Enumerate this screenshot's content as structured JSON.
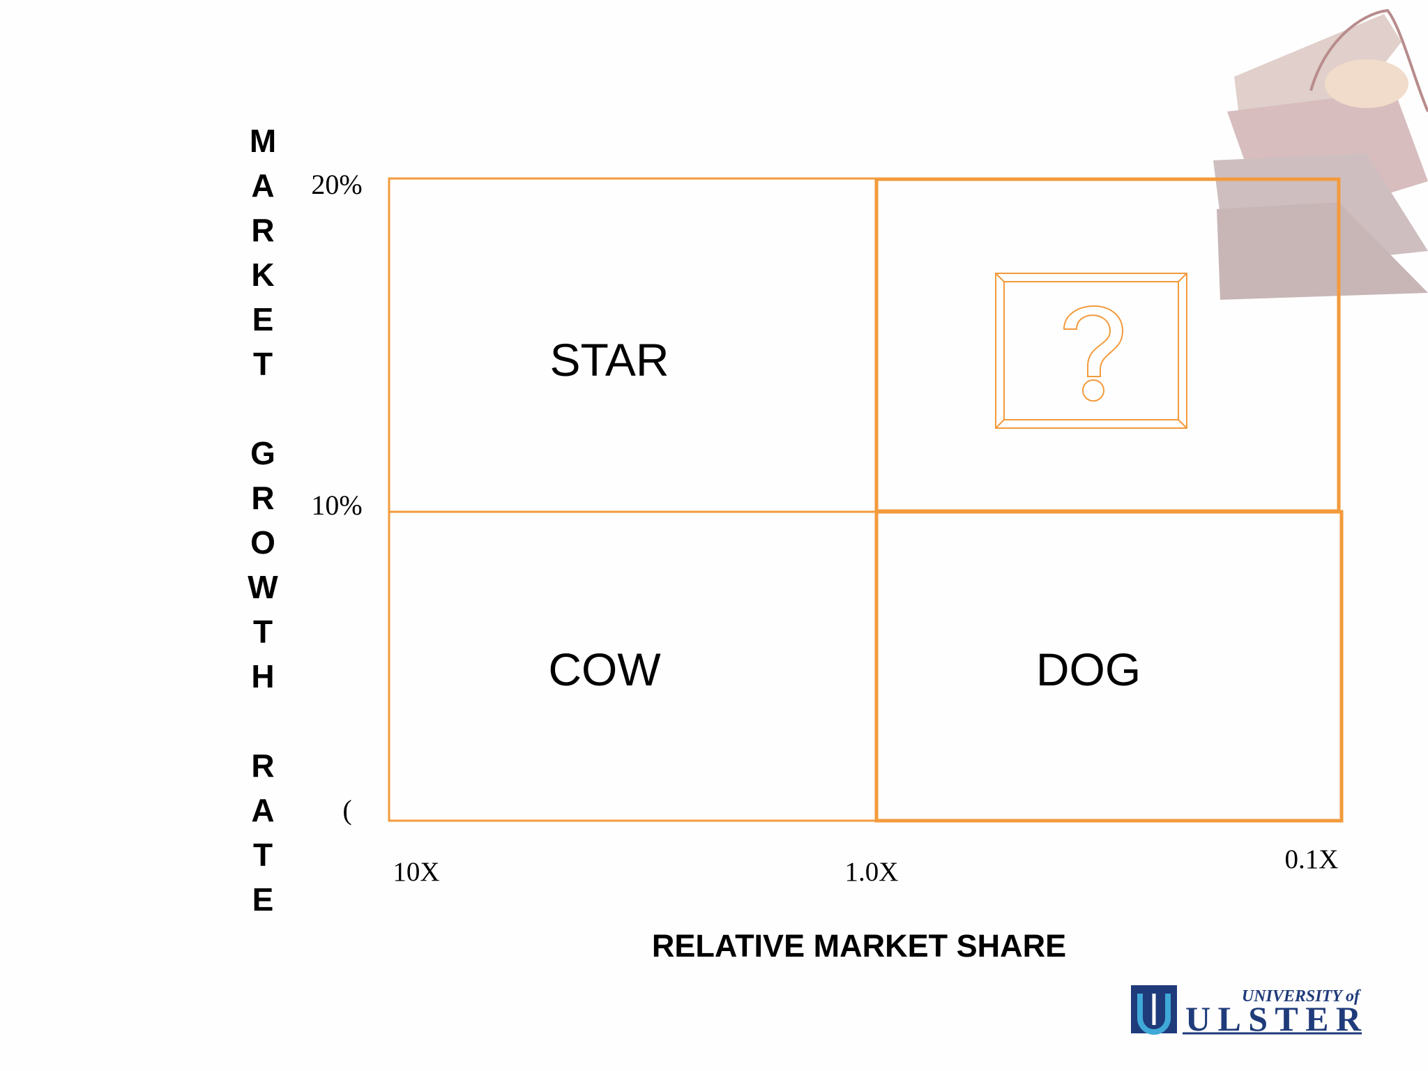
{
  "y_axis_label": "MARKET GROWTH RATE",
  "y_ticks": [
    "20%",
    "10%",
    "("
  ],
  "x_ticks": [
    "10X",
    "1.0X",
    "0.1X"
  ],
  "x_axis_label": "RELATIVE MARKET SHARE",
  "quadrants": [
    "STAR",
    "COW",
    "DOG"
  ],
  "logo": {
    "line1": "UNIVERSITY of",
    "line2": "ULSTER"
  }
}
